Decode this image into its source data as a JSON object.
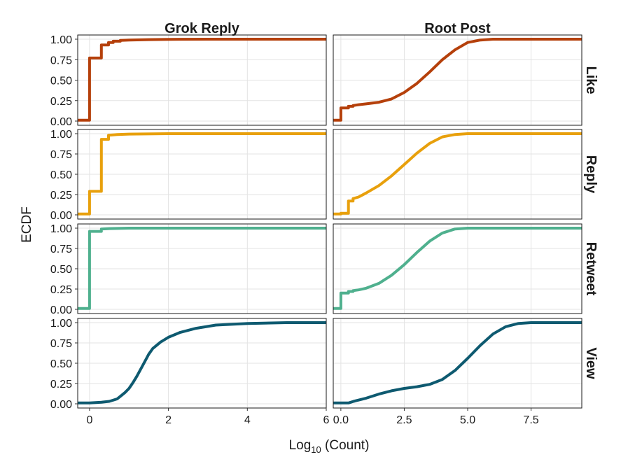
{
  "chart_data": {
    "type": "line",
    "subtype": "ecdf-facet-grid",
    "ylabel": "ECDF",
    "xlabel_main": "Log",
    "xlabel_sub": "10",
    "xlabel_rest": " (Count)",
    "columns": [
      "Grok Reply",
      "Root Post"
    ],
    "rows": [
      "Like",
      "Reply",
      "Retweet",
      "View"
    ],
    "row_colors": {
      "Like": "#b5400b",
      "Reply": "#e8a00c",
      "Retweet": "#4fb08e",
      "View": "#0e5a70"
    },
    "grid": true,
    "ylim": [
      0,
      1
    ],
    "yticks": [
      0.0,
      0.25,
      0.5,
      0.75,
      1.0
    ],
    "yticklabels": [
      "0.00",
      "0.25",
      "0.50",
      "0.75",
      "1.00"
    ],
    "panels_x": {
      "Grok Reply": {
        "xlim": [
          -0.3,
          6
        ],
        "xticks": [
          0,
          2,
          4,
          6
        ],
        "xticklabels": [
          "0",
          "2",
          "4",
          "6"
        ]
      },
      "Root Post": {
        "xlim": [
          -0.3,
          9.5
        ],
        "xticks": [
          0,
          2.5,
          5,
          7.5
        ],
        "xticklabels": [
          "0.0",
          "2.5",
          "5.0",
          "7.5"
        ]
      }
    },
    "series": [
      {
        "row": "Like",
        "column": "Grok Reply",
        "points": [
          [
            -0.3,
            0.01
          ],
          [
            0.0,
            0.01
          ],
          [
            0.0,
            0.77
          ],
          [
            0.3,
            0.77
          ],
          [
            0.3,
            0.93
          ],
          [
            0.48,
            0.93
          ],
          [
            0.48,
            0.96
          ],
          [
            0.6,
            0.96
          ],
          [
            0.6,
            0.975
          ],
          [
            0.78,
            0.975
          ],
          [
            0.78,
            0.985
          ],
          [
            1.0,
            0.99
          ],
          [
            1.5,
            0.995
          ],
          [
            2.0,
            0.998
          ],
          [
            3.0,
            1.0
          ],
          [
            6.0,
            1.0
          ]
        ]
      },
      {
        "row": "Like",
        "column": "Root Post",
        "points": [
          [
            -0.3,
            0.01
          ],
          [
            0.0,
            0.01
          ],
          [
            0.0,
            0.16
          ],
          [
            0.3,
            0.16
          ],
          [
            0.3,
            0.18
          ],
          [
            0.48,
            0.18
          ],
          [
            0.48,
            0.19
          ],
          [
            0.7,
            0.2
          ],
          [
            1.0,
            0.21
          ],
          [
            1.5,
            0.23
          ],
          [
            2.0,
            0.27
          ],
          [
            2.5,
            0.35
          ],
          [
            3.0,
            0.46
          ],
          [
            3.5,
            0.6
          ],
          [
            4.0,
            0.75
          ],
          [
            4.5,
            0.87
          ],
          [
            5.0,
            0.96
          ],
          [
            5.5,
            0.99
          ],
          [
            6.0,
            1.0
          ],
          [
            9.5,
            1.0
          ]
        ]
      },
      {
        "row": "Reply",
        "column": "Grok Reply",
        "points": [
          [
            -0.3,
            0.01
          ],
          [
            0.0,
            0.01
          ],
          [
            0.0,
            0.29
          ],
          [
            0.3,
            0.29
          ],
          [
            0.3,
            0.93
          ],
          [
            0.48,
            0.93
          ],
          [
            0.48,
            0.98
          ],
          [
            0.7,
            0.99
          ],
          [
            1.0,
            0.995
          ],
          [
            2.0,
            1.0
          ],
          [
            6.0,
            1.0
          ]
        ]
      },
      {
        "row": "Reply",
        "column": "Root Post",
        "points": [
          [
            -0.3,
            0.01
          ],
          [
            0.0,
            0.01
          ],
          [
            0.0,
            0.02
          ],
          [
            0.3,
            0.02
          ],
          [
            0.3,
            0.17
          ],
          [
            0.48,
            0.17
          ],
          [
            0.48,
            0.2
          ],
          [
            0.7,
            0.22
          ],
          [
            1.0,
            0.27
          ],
          [
            1.5,
            0.36
          ],
          [
            2.0,
            0.48
          ],
          [
            2.5,
            0.62
          ],
          [
            3.0,
            0.76
          ],
          [
            3.5,
            0.88
          ],
          [
            4.0,
            0.96
          ],
          [
            4.5,
            0.99
          ],
          [
            5.0,
            1.0
          ],
          [
            9.5,
            1.0
          ]
        ]
      },
      {
        "row": "Retweet",
        "column": "Grok Reply",
        "points": [
          [
            -0.3,
            0.01
          ],
          [
            0.0,
            0.01
          ],
          [
            0.0,
            0.96
          ],
          [
            0.3,
            0.96
          ],
          [
            0.3,
            0.99
          ],
          [
            0.5,
            0.995
          ],
          [
            1.0,
            1.0
          ],
          [
            6.0,
            1.0
          ]
        ]
      },
      {
        "row": "Retweet",
        "column": "Root Post",
        "points": [
          [
            -0.3,
            0.01
          ],
          [
            0.0,
            0.01
          ],
          [
            0.0,
            0.2
          ],
          [
            0.3,
            0.2
          ],
          [
            0.3,
            0.22
          ],
          [
            0.48,
            0.22
          ],
          [
            0.48,
            0.23
          ],
          [
            0.7,
            0.24
          ],
          [
            1.0,
            0.26
          ],
          [
            1.5,
            0.32
          ],
          [
            2.0,
            0.42
          ],
          [
            2.5,
            0.55
          ],
          [
            3.0,
            0.7
          ],
          [
            3.5,
            0.84
          ],
          [
            4.0,
            0.94
          ],
          [
            4.5,
            0.99
          ],
          [
            5.0,
            1.0
          ],
          [
            9.5,
            1.0
          ]
        ]
      },
      {
        "row": "View",
        "column": "Grok Reply",
        "points": [
          [
            -0.3,
            0.01
          ],
          [
            0.0,
            0.01
          ],
          [
            0.3,
            0.02
          ],
          [
            0.5,
            0.03
          ],
          [
            0.7,
            0.06
          ],
          [
            0.8,
            0.1
          ],
          [
            0.9,
            0.14
          ],
          [
            1.0,
            0.19
          ],
          [
            1.1,
            0.26
          ],
          [
            1.2,
            0.34
          ],
          [
            1.3,
            0.43
          ],
          [
            1.4,
            0.52
          ],
          [
            1.5,
            0.61
          ],
          [
            1.6,
            0.68
          ],
          [
            1.8,
            0.76
          ],
          [
            2.0,
            0.82
          ],
          [
            2.3,
            0.88
          ],
          [
            2.7,
            0.93
          ],
          [
            3.2,
            0.97
          ],
          [
            4.0,
            0.99
          ],
          [
            5.0,
            1.0
          ],
          [
            6.0,
            1.0
          ]
        ]
      },
      {
        "row": "View",
        "column": "Root Post",
        "points": [
          [
            -0.3,
            0.01
          ],
          [
            0.0,
            0.01
          ],
          [
            0.3,
            0.01
          ],
          [
            0.5,
            0.03
          ],
          [
            1.0,
            0.07
          ],
          [
            1.5,
            0.12
          ],
          [
            2.0,
            0.16
          ],
          [
            2.5,
            0.19
          ],
          [
            3.0,
            0.21
          ],
          [
            3.5,
            0.24
          ],
          [
            4.0,
            0.3
          ],
          [
            4.5,
            0.41
          ],
          [
            5.0,
            0.56
          ],
          [
            5.5,
            0.72
          ],
          [
            6.0,
            0.86
          ],
          [
            6.5,
            0.95
          ],
          [
            7.0,
            0.99
          ],
          [
            7.5,
            1.0
          ],
          [
            9.5,
            1.0
          ]
        ]
      }
    ]
  }
}
